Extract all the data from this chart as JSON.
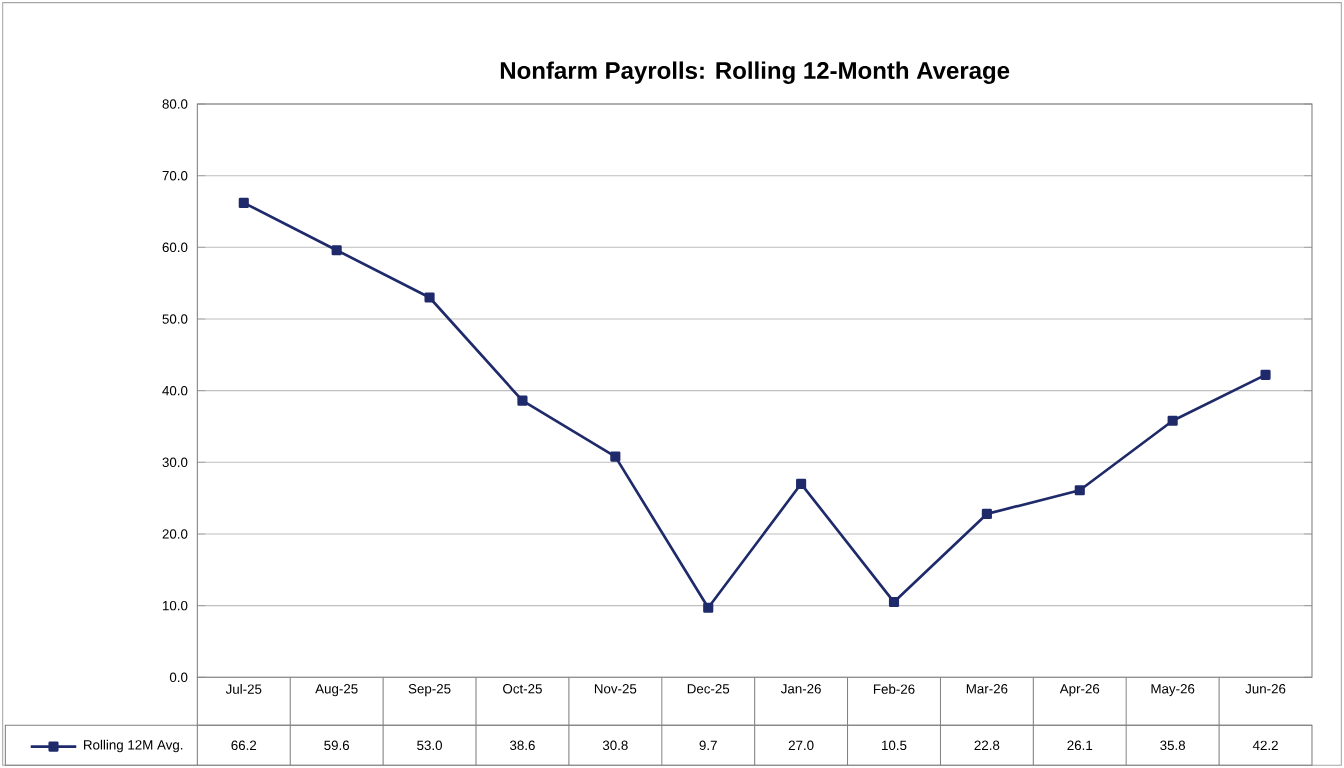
{
  "chart_data": {
    "type": "line",
    "title": "Nonfarm Payrolls: Rolling 12-Month Average",
    "categories": [
      "Jul-25",
      "Aug-25",
      "Sep-25",
      "Oct-25",
      "Nov-25",
      "Dec-25",
      "Jan-26",
      "Feb-26",
      "Mar-26",
      "Apr-26",
      "May-26",
      "Jun-26"
    ],
    "series": [
      {
        "name": "Rolling 12M Avg.",
        "color": "#1f2a6b",
        "values": [
          66.2,
          59.6,
          53.0,
          38.6,
          30.8,
          9.7,
          27.0,
          10.5,
          22.8,
          26.1,
          35.8,
          42.2
        ],
        "value_labels": [
          "66.2",
          "59.6",
          "53.0",
          "38.6",
          "30.8",
          "9.7",
          "27.0",
          "10.5",
          "22.8",
          "26.1",
          "35.8",
          "42.2"
        ]
      }
    ],
    "ylim": [
      0,
      80
    ],
    "yticks": [
      {
        "value": 0,
        "label": "0.0"
      },
      {
        "value": 10,
        "label": "10.0"
      },
      {
        "value": 20,
        "label": "20.0"
      },
      {
        "value": 30,
        "label": "30.0"
      },
      {
        "value": 40,
        "label": "40.0"
      },
      {
        "value": 50,
        "label": "50.0"
      },
      {
        "value": 60,
        "label": "60.0"
      },
      {
        "value": 70,
        "label": "70.0"
      },
      {
        "value": 80,
        "label": "80.0"
      }
    ],
    "grid": "y",
    "legend": "bottom",
    "marker": "square",
    "line_style": "solid"
  }
}
